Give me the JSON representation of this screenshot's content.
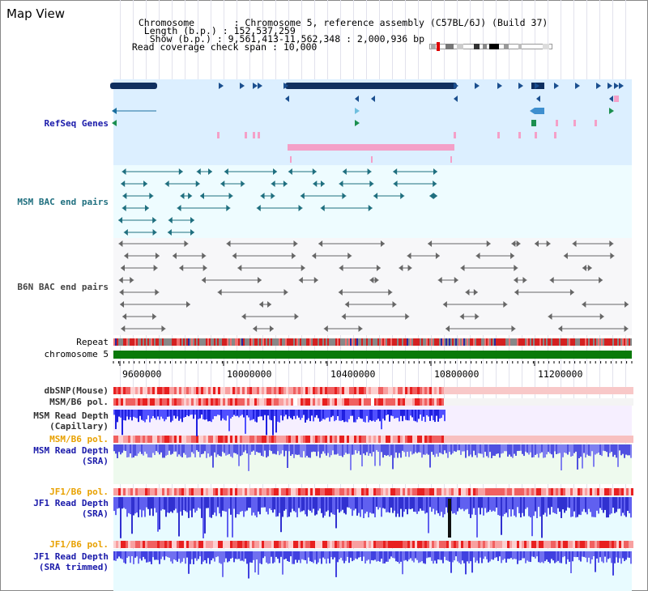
{
  "title": "Map View",
  "header": {
    "chromosome_label": "Chromosome",
    "chromosome_value": "Chromosome 5, reference assembly (C57BL/6J) (Build 37)",
    "length_label": "Length (b.p.)",
    "length_value": "152,537,259",
    "show_label": "Show (b.p.)",
    "show_value": "9,561,413-11,562,348 : 2,000,936 bp",
    "coverage_label": "Read coverage check span",
    "coverage_value": "10,000"
  },
  "tracks": {
    "refseq": "RefSeq Genes",
    "msm_bac": "MSM BAC end pairs",
    "b6n_bac": "B6N BAC end pairs",
    "repeat": "Repeat",
    "chromosome": "chromosome 5",
    "dbsnp": "dbSNP(Mouse)",
    "msm_b6_pol_1": "MSM/B6 pol.",
    "msm_read_depth_cap_1": "MSM Read Depth",
    "msm_read_depth_cap_2": "(Capillary)",
    "msm_b6_pol_2": "MSM/B6 pol.",
    "msm_read_depth_sra_1": "MSM Read Depth",
    "msm_read_depth_sra_2": "(SRA)",
    "jf1_b6_pol_1": "JF1/B6 pol.",
    "jf1_read_depth_sra_1": "JF1 Read Depth",
    "jf1_read_depth_sra_2": "(SRA)",
    "jf1_b6_pol_2": "JF1/B6 pol.",
    "jf1_read_depth_trim_1": "JF1 Read Depth",
    "jf1_read_depth_trim_2": "(SRA trimmed)"
  },
  "axis": {
    "ticks": [
      "9600000",
      "10000000",
      "10400000",
      "10800000",
      "11200000"
    ]
  },
  "colors": {
    "refseq_bg": "#dcefff",
    "msm_bg": "#eefcff",
    "gene_dark": "#0f2f5f",
    "gene_pink": "#f4a0c8",
    "chromosome": "#0a7a0a",
    "depth_blue": "#3c3cff",
    "pol_red": "#e83030"
  }
}
